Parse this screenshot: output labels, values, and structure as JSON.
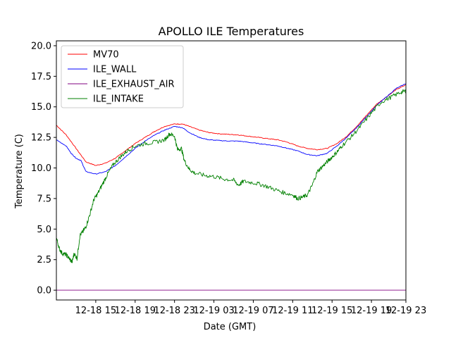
{
  "chart_data": {
    "type": "line",
    "title": "APOLLO ILE Temperatures",
    "xlabel": "Date (GMT)",
    "ylabel": "Temperature (C)",
    "x_unit": "hours since 12-18 11:00 GMT",
    "xlim": [
      0,
      35.5
    ],
    "ylim": [
      -0.8,
      20.4
    ],
    "xticks": [
      {
        "x": 4,
        "label": "12-18 15"
      },
      {
        "x": 8,
        "label": "12-18 19"
      },
      {
        "x": 12,
        "label": "12-18 23"
      },
      {
        "x": 16,
        "label": "12-19 03"
      },
      {
        "x": 20,
        "label": "12-19 07"
      },
      {
        "x": 24,
        "label": "12-19 11"
      },
      {
        "x": 28,
        "label": "12-19 15"
      },
      {
        "x": 32,
        "label": "12-19 19"
      },
      {
        "x": 35.5,
        "label": "12-19 23"
      }
    ],
    "yticks": [
      0.0,
      2.5,
      5.0,
      7.5,
      10.0,
      12.5,
      15.0,
      17.5,
      20.0
    ],
    "ytick_labels": [
      "0.0",
      "2.5",
      "5.0",
      "7.5",
      "10.0",
      "12.5",
      "15.0",
      "17.5",
      "20.0"
    ],
    "legend_position": "upper-left",
    "series": [
      {
        "name": "MV70",
        "color": "#ff0000",
        "x": [
          0,
          1,
          2,
          3,
          4,
          5,
          6,
          7,
          8,
          9,
          10,
          11,
          12,
          12.8,
          13.5,
          14.5,
          15.5,
          16.5,
          17.5,
          18.5,
          19.5,
          20.5,
          21.5,
          22.5,
          23.5,
          24.5,
          25.5,
          26.5,
          27.5,
          28.5,
          29.5,
          30.5,
          31.5,
          32.5,
          33.5,
          34.5,
          35.5
        ],
        "y": [
          13.5,
          12.7,
          11.6,
          10.5,
          10.2,
          10.4,
          10.8,
          11.4,
          12.0,
          12.5,
          13.0,
          13.4,
          13.6,
          13.6,
          13.4,
          13.1,
          12.9,
          12.8,
          12.75,
          12.7,
          12.6,
          12.5,
          12.4,
          12.3,
          12.1,
          11.8,
          11.6,
          11.5,
          11.6,
          12.0,
          12.6,
          13.4,
          14.3,
          15.2,
          15.8,
          16.4,
          16.8
        ]
      },
      {
        "name": "ILE_WALL",
        "color": "#0000ff",
        "x": [
          0,
          1,
          1.5,
          2,
          2.5,
          3,
          4,
          5,
          6,
          7,
          8,
          9,
          10,
          11,
          12,
          12.8,
          13.5,
          14.5,
          15.5,
          16.5,
          17.5,
          18.5,
          19.5,
          20.5,
          21.5,
          22.5,
          23.5,
          24.5,
          25.5,
          26.5,
          27.5,
          28.5,
          29.5,
          30.5,
          31.5,
          32.5,
          33.5,
          34.5,
          35.5
        ],
        "y": [
          12.3,
          11.8,
          11.2,
          10.8,
          10.6,
          9.7,
          9.5,
          9.7,
          10.2,
          10.9,
          11.6,
          12.2,
          12.7,
          13.1,
          13.4,
          13.3,
          12.9,
          12.5,
          12.3,
          12.25,
          12.2,
          12.2,
          12.1,
          12.0,
          11.9,
          11.8,
          11.6,
          11.4,
          11.1,
          11.0,
          11.2,
          11.8,
          12.5,
          13.3,
          14.2,
          15.1,
          15.8,
          16.5,
          16.9
        ]
      },
      {
        "name": "ILE_EXHAUST_AIR",
        "color": "#800080",
        "x": [
          0,
          35.5
        ],
        "y": [
          0.0,
          0.0
        ]
      },
      {
        "name": "ILE_INTAKE",
        "color": "#008000",
        "x": [
          0,
          0.3,
          0.6,
          1.0,
          1.3,
          1.6,
          1.8,
          2.1,
          2.4,
          2.7,
          3.0,
          3.4,
          3.8,
          4.2,
          4.7,
          5.2,
          5.8,
          6.5,
          7.2,
          8.0,
          9.0,
          10.0,
          11.0,
          11.5,
          12.0,
          12.3,
          12.7,
          13.0,
          13.5,
          14.0,
          15.0,
          16.0,
          17.0,
          18.0,
          18.5,
          19.0,
          20.0,
          21.0,
          22.0,
          23.0,
          24.0,
          24.5,
          25.0,
          25.5,
          26.0,
          26.5,
          27.0,
          27.5,
          28.0,
          28.5,
          29.0,
          30.0,
          31.0,
          32.0,
          33.0,
          34.0,
          35.0,
          35.5
        ],
        "y": [
          4.3,
          3.4,
          3.0,
          2.9,
          2.6,
          2.3,
          3.0,
          2.6,
          4.5,
          4.8,
          5.2,
          6.2,
          7.4,
          7.9,
          8.7,
          9.5,
          10.3,
          10.9,
          11.4,
          11.8,
          12.0,
          12.1,
          12.3,
          12.8,
          12.6,
          11.5,
          11.6,
          10.6,
          9.9,
          9.6,
          9.4,
          9.3,
          9.1,
          9.0,
          8.6,
          8.9,
          8.8,
          8.6,
          8.3,
          8.0,
          7.8,
          7.5,
          7.6,
          7.8,
          8.6,
          9.7,
          10.1,
          10.5,
          10.9,
          11.3,
          11.8,
          12.6,
          13.5,
          14.5,
          15.4,
          15.8,
          16.2,
          16.3
        ]
      }
    ]
  }
}
